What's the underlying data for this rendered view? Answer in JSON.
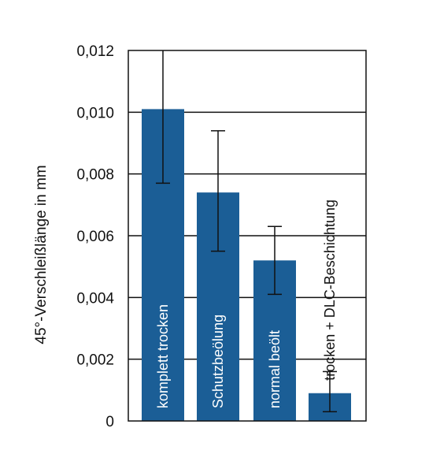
{
  "chart_data": {
    "type": "bar",
    "title": "",
    "xlabel": "",
    "ylabel": "45°-Verschleißlänge in mm",
    "ylim": [
      0,
      0.012
    ],
    "yticks": [
      {
        "value": 0,
        "label": "0"
      },
      {
        "value": 0.002,
        "label": "0,002"
      },
      {
        "value": 0.004,
        "label": "0,004"
      },
      {
        "value": 0.006,
        "label": "0,006"
      },
      {
        "value": 0.008,
        "label": "0,008"
      },
      {
        "value": 0.01,
        "label": "0,010"
      },
      {
        "value": 0.012,
        "label": "0,012"
      }
    ],
    "grid": "horizontal",
    "bar_color": "#1B5E96",
    "categories": [
      "komplett trocken",
      "Schutzbeölung",
      "normal beölt",
      "trocken + DLC-Beschichtung"
    ],
    "values": [
      0.0101,
      0.0074,
      0.0052,
      0.0009
    ],
    "error_low": [
      0.0077,
      0.0055,
      0.0041,
      0.0003
    ],
    "error_high": [
      0.0121,
      0.0094,
      0.0063,
      0.0016
    ]
  }
}
